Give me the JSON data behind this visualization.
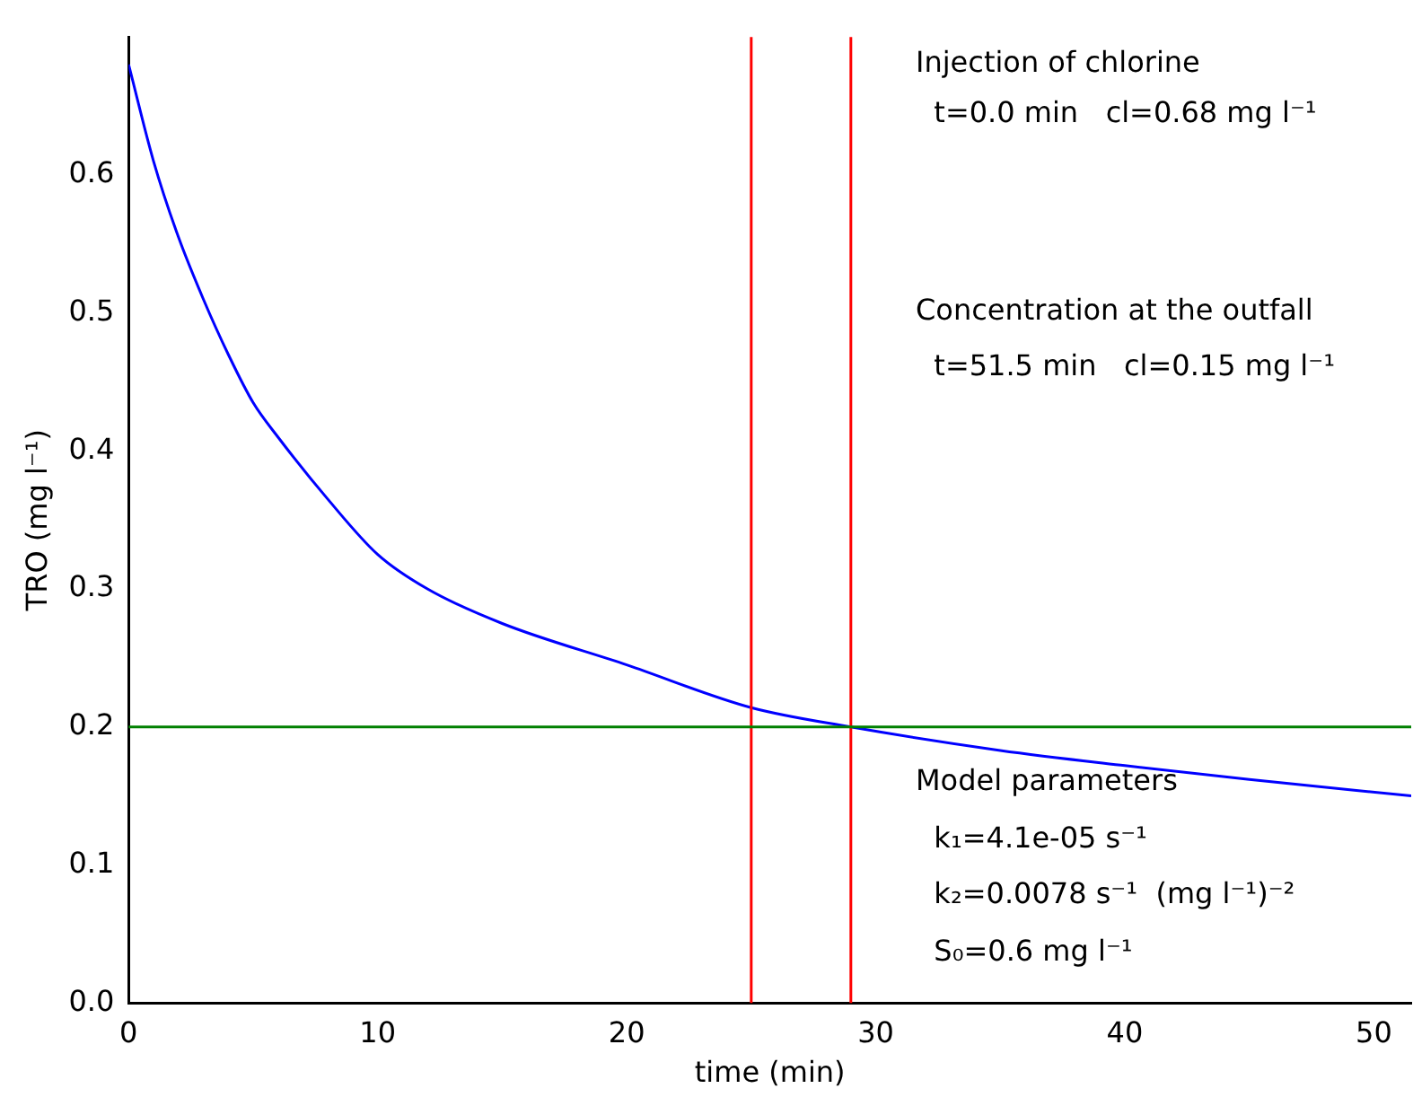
{
  "chart_data": {
    "type": "line",
    "xlabel": "time (min)",
    "ylabel": "TRO (mg l⁻¹)",
    "x": [
      0,
      1,
      2,
      3,
      4,
      5,
      6,
      8,
      10,
      12,
      15,
      20,
      25,
      29,
      35,
      40,
      45,
      51.5
    ],
    "series": [
      {
        "color": "#0000ff",
        "values": [
          0.68,
          0.61,
          0.555,
          0.51,
          0.47,
          0.435,
          0.41,
          0.365,
          0.325,
          0.3,
          0.275,
          0.245,
          0.214,
          0.2,
          0.183,
          0.172,
          0.162,
          0.15
        ]
      }
    ],
    "xlim": [
      0,
      51.5
    ],
    "xticks": [
      0,
      10,
      20,
      30,
      40,
      50
    ],
    "ylim": [
      0,
      0.7
    ],
    "yticks": [
      {
        "value": 0,
        "label": "0.0"
      },
      0.1,
      0.2,
      0.3,
      0.4,
      0.5,
      0.6
    ],
    "ref_lines": [
      {
        "axis": "x",
        "value": 25,
        "color": "#ff0000"
      },
      {
        "axis": "x",
        "value": 29,
        "color": "#ff0000"
      },
      {
        "axis": "y",
        "value": 0.2,
        "color": "#008000"
      }
    ],
    "annotations": [
      "Injection of chlorine",
      "  t=0.0 min   cl=0.68 mg l⁻¹",
      "Concentration at the outfall",
      "  t=51.5 min   cl=0.15 mg l⁻¹",
      "Model parameters",
      "  k₁=4.1e-05 s⁻¹",
      "  k₂=0.0078 s⁻¹  (mg l⁻¹)⁻²",
      "  S₀=0.6 mg l⁻¹"
    ],
    "grid": false,
    "legend": false,
    "marker": "none",
    "line_style": "solid"
  }
}
